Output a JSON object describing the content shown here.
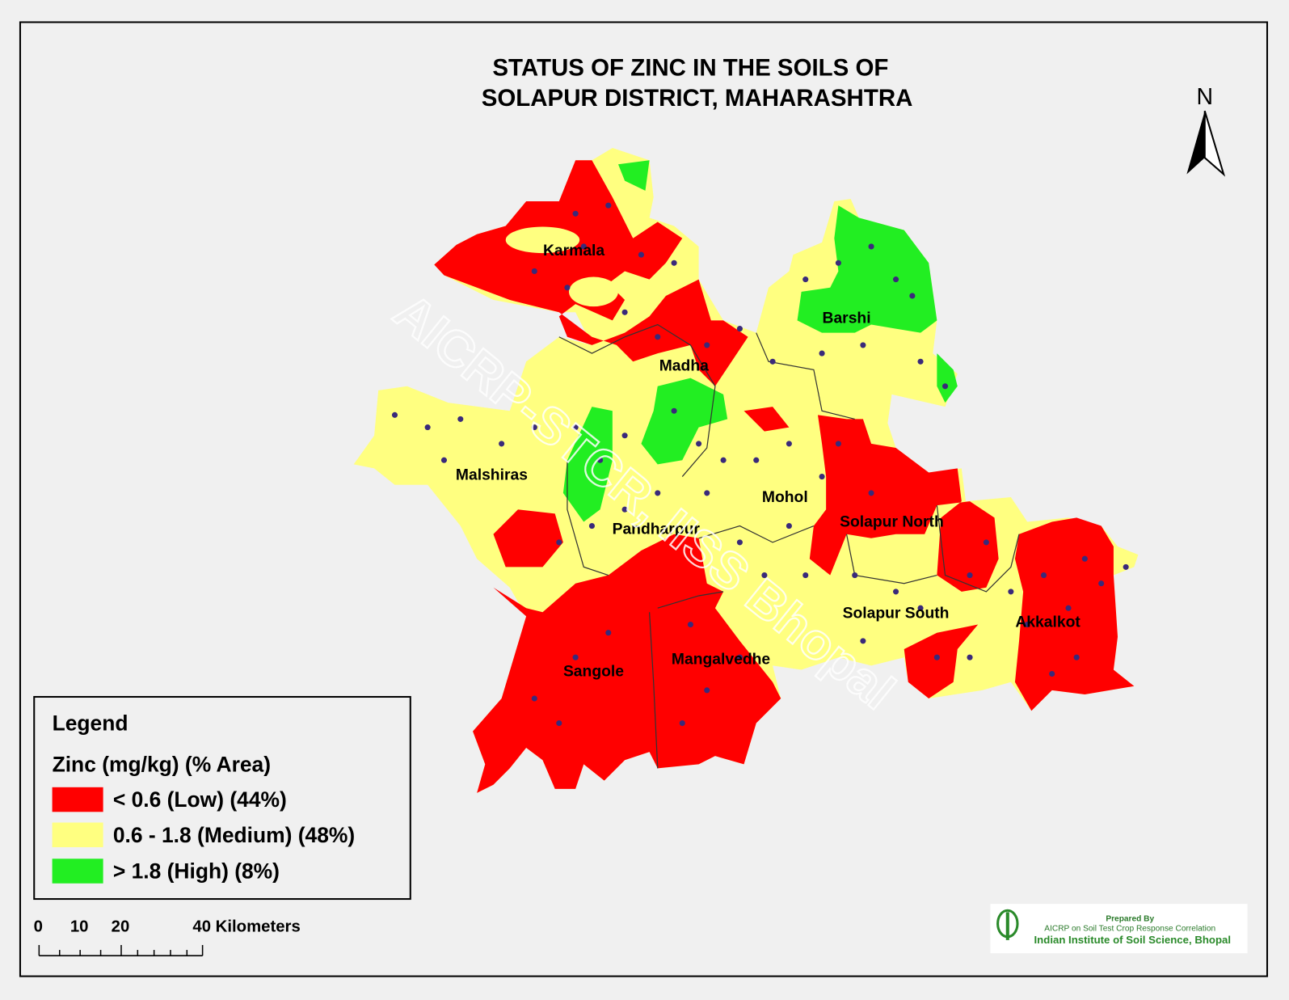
{
  "title": [
    "STATUS OF ZINC   IN THE SOILS OF",
    "SOLAPUR   DISTRICT, MAHARASHTRA"
  ],
  "north": "N",
  "talukas": [
    "Karmala",
    "Barshi",
    "Madha",
    "Malshiras",
    "Mohol",
    "Solapur North",
    "Pandharpur",
    "Solapur South",
    "Akkalkot",
    "Sangole",
    "Mangalvedhe"
  ],
  "watermark": "AICRP-STCR, IISS Bhopal",
  "legend": {
    "title": "Legend",
    "subtitle": "Zinc (mg/kg) (% Area)",
    "items": [
      {
        "label": "< 0.6 (Low) (44%)",
        "color": "#ff0000"
      },
      {
        "label": "0.6 - 1.8 (Medium) (48%)",
        "color": "#ffff80"
      },
      {
        "label": "> 1.8 (High) (8%)",
        "color": "#22ee22"
      }
    ]
  },
  "scale": {
    "labels": [
      "0",
      "10",
      "20",
      "40 Kilometers"
    ]
  },
  "credits": [
    "Prepared By",
    "AICRP on Soil Test Crop Response Correlation",
    "Indian Institute of Soil Science, Bhopal"
  ]
}
